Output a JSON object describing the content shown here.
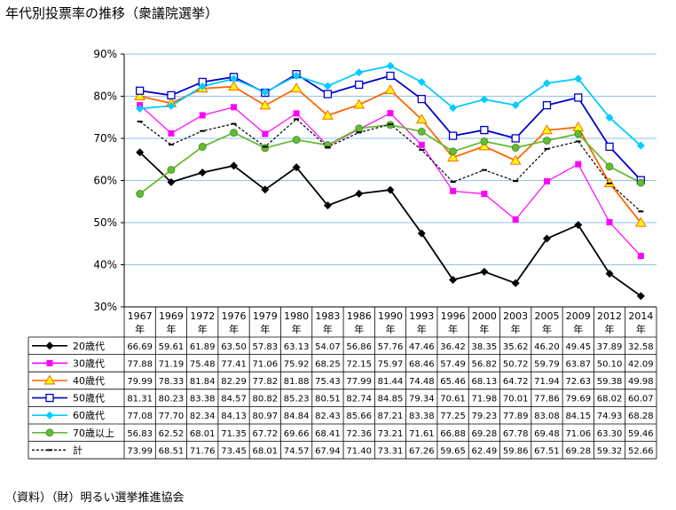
{
  "title": "年代別投票率の推移（衆議院選挙）",
  "source": "（資料）（財）明るい選挙推進協会",
  "chart_data": {
    "type": "line",
    "title": "年代別投票率の推移（衆議院選挙）",
    "xlabel": "",
    "ylabel": "",
    "ylim": [
      30,
      90
    ],
    "yticks": [
      "30%",
      "40%",
      "50%",
      "60%",
      "70%",
      "80%",
      "90%"
    ],
    "grid": "horizontal",
    "legend": "data-table",
    "categories": [
      "1967年",
      "1969年",
      "1972年",
      "1976年",
      "1979年",
      "1980年",
      "1983年",
      "1986年",
      "1990年",
      "1993年",
      "1996年",
      "2000年",
      "2003年",
      "2005年",
      "2009年",
      "2012年",
      "2014年"
    ],
    "series": [
      {
        "name": "20歳代",
        "color": "#000000",
        "marker": "diamond",
        "dashed": false,
        "values": [
          66.69,
          59.61,
          61.89,
          63.5,
          57.83,
          63.13,
          54.07,
          56.86,
          57.76,
          47.46,
          36.42,
          38.35,
          35.62,
          46.2,
          49.45,
          37.89,
          32.58
        ]
      },
      {
        "name": "30歳代",
        "color": "#ff00ff",
        "marker": "square-filled",
        "dashed": false,
        "values": [
          77.88,
          71.19,
          75.48,
          77.41,
          71.06,
          75.92,
          68.25,
          72.15,
          75.97,
          68.46,
          57.49,
          56.82,
          50.72,
          59.79,
          63.87,
          50.1,
          42.09
        ]
      },
      {
        "name": "40歳代",
        "color": "#ff6600",
        "marker": "triangle",
        "dashed": false,
        "values": [
          79.99,
          78.33,
          81.84,
          82.29,
          77.82,
          81.88,
          75.43,
          77.99,
          81.44,
          74.48,
          65.46,
          68.13,
          64.72,
          71.94,
          72.63,
          59.38,
          49.98
        ]
      },
      {
        "name": "50歳代",
        "color": "#0000cc",
        "marker": "square-open",
        "dashed": false,
        "values": [
          81.31,
          80.23,
          83.38,
          84.57,
          80.82,
          85.23,
          80.51,
          82.74,
          84.85,
          79.34,
          70.61,
          71.98,
          70.01,
          77.86,
          79.69,
          68.02,
          60.07
        ]
      },
      {
        "name": "60歳代",
        "color": "#00ccff",
        "marker": "diamond",
        "dashed": false,
        "values": [
          77.08,
          77.7,
          82.34,
          84.13,
          80.97,
          84.84,
          82.43,
          85.66,
          87.21,
          83.38,
          77.25,
          79.23,
          77.89,
          83.08,
          84.15,
          74.93,
          68.28
        ]
      },
      {
        "name": "70歳以上",
        "color": "#66bb33",
        "marker": "circle",
        "dashed": false,
        "values": [
          56.83,
          62.52,
          68.01,
          71.35,
          67.72,
          69.66,
          68.41,
          72.36,
          73.21,
          71.61,
          66.88,
          69.28,
          67.78,
          69.48,
          71.06,
          63.3,
          59.46
        ]
      },
      {
        "name": "計",
        "color": "#000000",
        "marker": "dash",
        "dashed": true,
        "values": [
          73.99,
          68.51,
          71.76,
          73.45,
          68.01,
          74.57,
          67.94,
          71.4,
          73.31,
          67.26,
          59.65,
          62.49,
          59.86,
          67.51,
          69.28,
          59.32,
          52.66
        ]
      }
    ]
  }
}
